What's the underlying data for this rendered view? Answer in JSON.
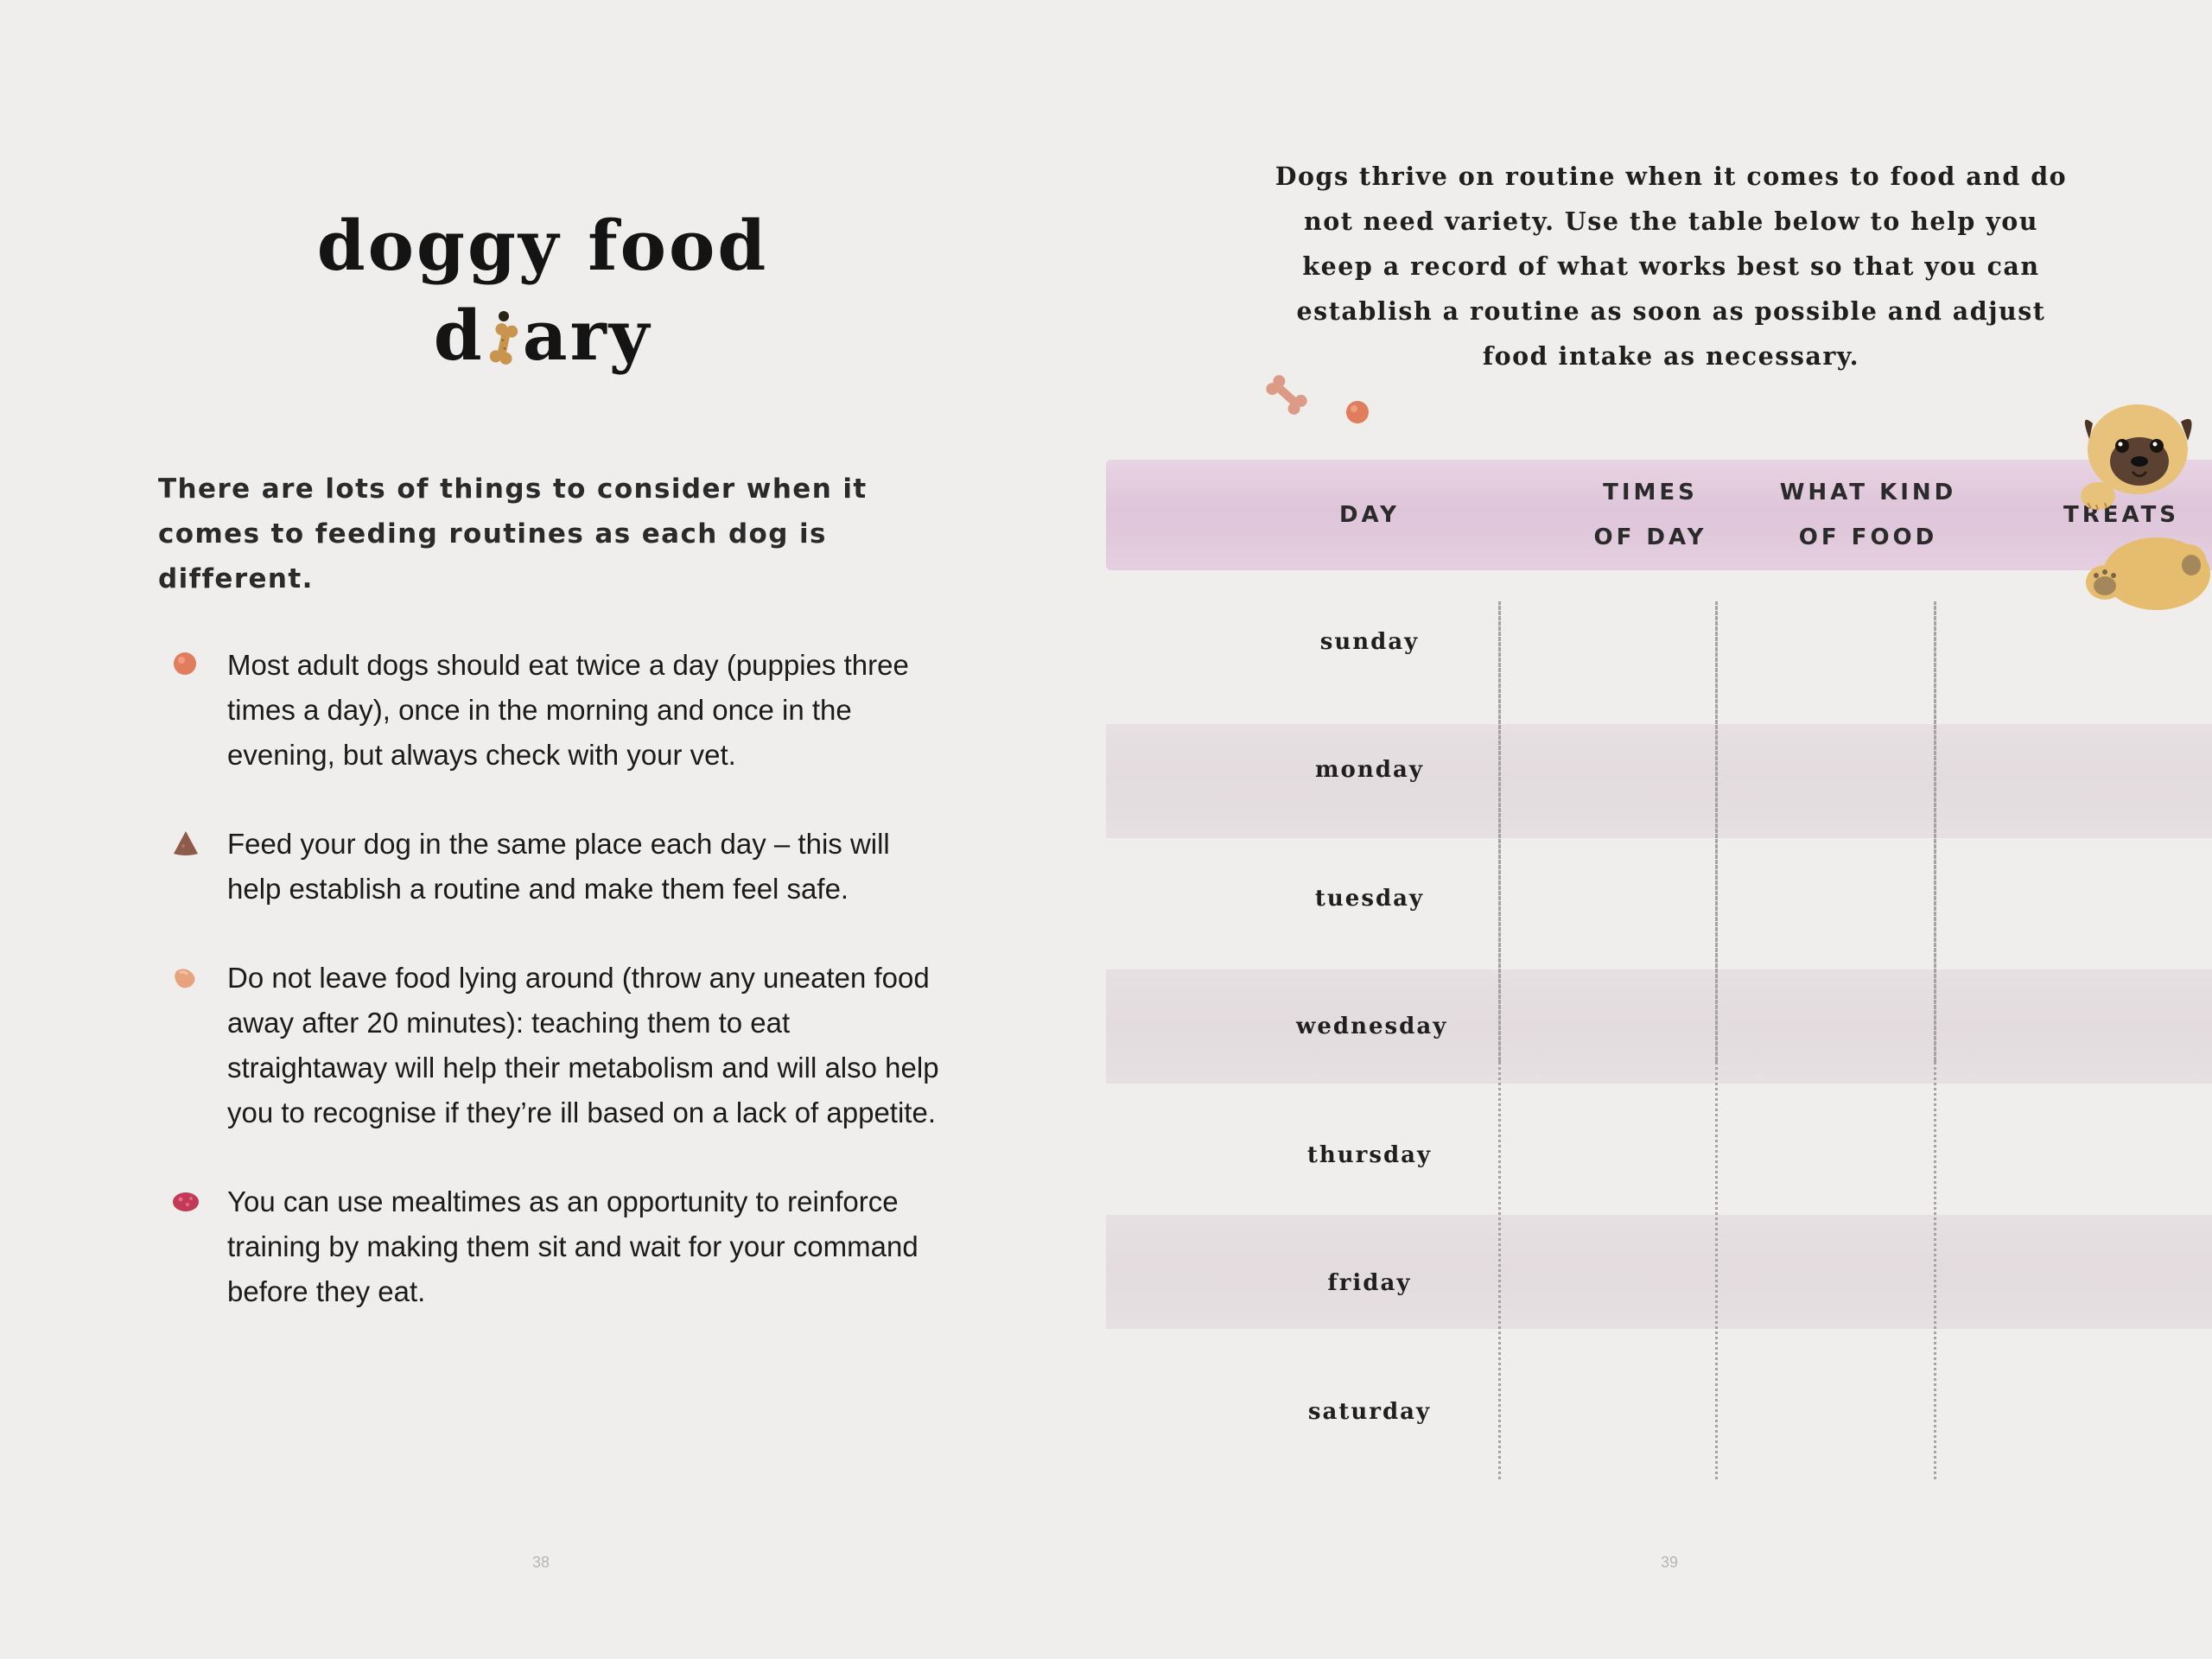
{
  "left_page": {
    "title_line1": "doggy food",
    "title_line2_start": "d",
    "title_line2_end": "ary",
    "intro": "There are lots of things to consider when it comes to feeding routines as each dog is different.",
    "bullets": [
      {
        "icon": "round-kibble-icon",
        "color": "#e07d5c",
        "text": "Most adult dogs should eat twice a day (puppies three times a day), once in the morning and once in the evening, but always check with your vet."
      },
      {
        "icon": "triangle-kibble-icon",
        "color": "#8d5a4c",
        "text": "Feed your dog in the same place each day – this will help establish a routine and make them feel safe."
      },
      {
        "icon": "heart-kibble-icon",
        "color": "#e9a27e",
        "text": "Do not leave food lying around (throw any uneaten food away after 20 minutes): teaching them to eat straightaway will help their metabolism and will also help you to recognise if they’re ill based on a lack of appetite."
      },
      {
        "icon": "meat-kibble-icon",
        "color": "#c23a55",
        "text": "You can use mealtimes as an opportunity to reinforce training by making them sit and wait for your command before they eat."
      }
    ],
    "page_number": "38"
  },
  "right_page": {
    "description": "Dogs thrive on routine when it comes to food and do not need variety. Use the table below to help you keep a record of what works best so that you can establish a routine as soon as possible and adjust food intake as necessary.",
    "columns": [
      {
        "line1": "DAY",
        "line2": ""
      },
      {
        "line1": "TIMES",
        "line2": "OF DAY"
      },
      {
        "line1": "WHAT KIND",
        "line2": "OF FOOD"
      },
      {
        "line1": "TREATS",
        "line2": ""
      }
    ],
    "days": [
      "sunday",
      "monday",
      "tuesday",
      "wednesday",
      "thursday",
      "friday",
      "saturday"
    ],
    "page_number": "39",
    "colors": {
      "header_band": "#e2cade",
      "row_band": "#e4dde0"
    }
  }
}
